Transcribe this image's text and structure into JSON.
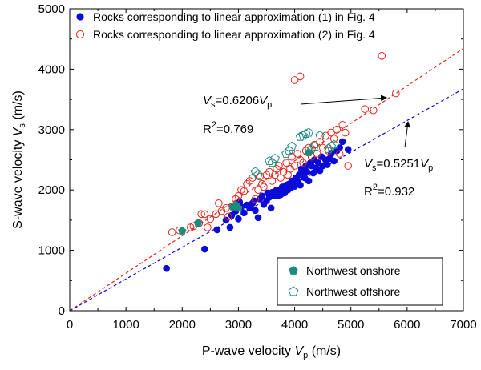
{
  "chart_data": {
    "type": "scatter",
    "xlabel": "P-wave velocity",
    "xlabel_symbol": "V",
    "xlabel_sub": "p",
    "xlabel_unit": " (m/s)",
    "ylabel": "S-wave velocity",
    "ylabel_symbol": "V",
    "ylabel_sub": "s",
    "ylabel_unit": " (m/s)",
    "xlim": [
      0,
      7000
    ],
    "ylim": [
      0,
      5000
    ],
    "xticks": [
      0,
      1000,
      2000,
      3000,
      4000,
      5000,
      6000,
      7000
    ],
    "yticks": [
      0,
      1000,
      2000,
      3000,
      4000,
      5000
    ],
    "grid": false,
    "legend_top": {
      "placement": "top-left",
      "entries": [
        {
          "label": "Rocks corresponding to linear approximation (1) in Fig. 4",
          "series": "linear-1"
        },
        {
          "label": "Rocks corresponding to linear approximation (2) in Fig. 4",
          "series": "linear-2"
        }
      ]
    },
    "legend_bottom": {
      "placement": "bottom-right",
      "entries": [
        {
          "label": "Northwest onshore",
          "series": "nw-onshore"
        },
        {
          "label": "Northwest offshore",
          "series": "nw-offshore"
        }
      ]
    },
    "series": [
      {
        "name": "Rocks corresponding to linear approximation (1) in Fig. 4",
        "id": "linear-1",
        "marker": "filled-circle",
        "color": "#0b0bd9",
        "points": [
          [
            1720,
            700
          ],
          [
            2400,
            1020
          ],
          [
            2620,
            1340
          ],
          [
            2780,
            1500
          ],
          [
            2850,
            1380
          ],
          [
            2880,
            1580
          ],
          [
            2950,
            1650
          ],
          [
            3000,
            1520
          ],
          [
            3020,
            1800
          ],
          [
            3050,
            1720
          ],
          [
            3100,
            1620
          ],
          [
            3150,
            1750
          ],
          [
            3200,
            1700
          ],
          [
            3250,
            1780
          ],
          [
            3280,
            1820
          ],
          [
            3300,
            1660
          ],
          [
            3350,
            1540
          ],
          [
            3380,
            1850
          ],
          [
            3420,
            1900
          ],
          [
            3450,
            1760
          ],
          [
            3500,
            1820
          ],
          [
            3520,
            1950
          ],
          [
            3550,
            1880
          ],
          [
            3580,
            1700
          ],
          [
            3600,
            1960
          ],
          [
            3620,
            1900
          ],
          [
            3680,
            2000
          ],
          [
            3700,
            1900
          ],
          [
            3720,
            1980
          ],
          [
            3750,
            1920
          ],
          [
            3780,
            2050
          ],
          [
            3800,
            2000
          ],
          [
            3820,
            1950
          ],
          [
            3850,
            2080
          ],
          [
            3880,
            2000
          ],
          [
            3900,
            2100
          ],
          [
            3920,
            2030
          ],
          [
            3950,
            2150
          ],
          [
            4000,
            2060
          ],
          [
            4020,
            2200
          ],
          [
            4050,
            2150
          ],
          [
            4080,
            2250
          ],
          [
            4100,
            2080
          ],
          [
            4120,
            2350
          ],
          [
            4150,
            2300
          ],
          [
            4180,
            2200
          ],
          [
            4200,
            2400
          ],
          [
            4220,
            2300
          ],
          [
            4250,
            2150
          ],
          [
            4280,
            2450
          ],
          [
            4300,
            2400
          ],
          [
            4330,
            2280
          ],
          [
            4350,
            2500
          ],
          [
            4380,
            2360
          ],
          [
            4420,
            2450
          ],
          [
            4450,
            2320
          ],
          [
            4480,
            2550
          ],
          [
            4500,
            2400
          ],
          [
            4550,
            2500
          ],
          [
            4580,
            2420
          ],
          [
            4620,
            2520
          ],
          [
            4650,
            2600
          ],
          [
            4700,
            2480
          ],
          [
            4750,
            2650
          ],
          [
            4800,
            2700
          ],
          [
            4850,
            2800
          ],
          [
            4950,
            2670
          ]
        ]
      },
      {
        "name": "Rocks corresponding to linear approximation (2) in Fig. 4",
        "id": "linear-2",
        "marker": "open-circle",
        "color": "#e3261c",
        "points": [
          [
            1820,
            1300
          ],
          [
            1950,
            1330
          ],
          [
            2150,
            1380
          ],
          [
            2200,
            1400
          ],
          [
            2300,
            1450
          ],
          [
            2340,
            1600
          ],
          [
            2400,
            1600
          ],
          [
            2450,
            1380
          ],
          [
            2500,
            1520
          ],
          [
            2600,
            1600
          ],
          [
            2650,
            1780
          ],
          [
            2700,
            1650
          ],
          [
            2780,
            1700
          ],
          [
            2820,
            1560
          ],
          [
            2950,
            1850
          ],
          [
            3000,
            1900
          ],
          [
            3050,
            2000
          ],
          [
            3100,
            1980
          ],
          [
            3150,
            2100
          ],
          [
            3200,
            2150
          ],
          [
            3250,
            2200
          ],
          [
            3300,
            1850
          ],
          [
            3350,
            2000
          ],
          [
            3380,
            2220
          ],
          [
            3420,
            2100
          ],
          [
            3450,
            2050
          ],
          [
            3500,
            2250
          ],
          [
            3550,
            2300
          ],
          [
            3600,
            2150
          ],
          [
            3650,
            2250
          ],
          [
            3680,
            2350
          ],
          [
            3720,
            2400
          ],
          [
            3750,
            2200
          ],
          [
            3800,
            2300
          ],
          [
            3850,
            2450
          ],
          [
            3880,
            2250
          ],
          [
            3920,
            2350
          ],
          [
            3950,
            2550
          ],
          [
            4000,
            2400
          ],
          [
            4050,
            2600
          ],
          [
            4100,
            2500
          ],
          [
            4150,
            2450
          ],
          [
            4200,
            2650
          ],
          [
            4250,
            2700
          ],
          [
            4300,
            2550
          ],
          [
            4350,
            2750
          ],
          [
            4400,
            2600
          ],
          [
            4450,
            2800
          ],
          [
            4500,
            2700
          ],
          [
            4550,
            2900
          ],
          [
            4600,
            2650
          ],
          [
            4650,
            2950
          ],
          [
            4700,
            2850
          ],
          [
            4750,
            3000
          ],
          [
            4850,
            3080
          ],
          [
            4900,
            2950
          ],
          [
            4950,
            2400
          ],
          [
            4800,
            2600
          ],
          [
            4000,
            3820
          ],
          [
            4100,
            3880
          ],
          [
            5250,
            3340
          ],
          [
            5400,
            3320
          ],
          [
            5550,
            4220
          ],
          [
            5800,
            3600
          ]
        ]
      },
      {
        "name": "Northwest onshore",
        "id": "nw-onshore",
        "marker": "filled-pentagon",
        "color": "#1e8a7e",
        "points": [
          [
            2000,
            1320
          ],
          [
            2280,
            1450
          ],
          [
            2900,
            1720
          ],
          [
            2950,
            1750
          ],
          [
            3000,
            1700
          ],
          [
            4250,
            2620
          ]
        ]
      },
      {
        "name": "Northwest offshore",
        "id": "nw-offshore",
        "marker": "open-pentagon",
        "color": "#1e8a7e",
        "points": [
          [
            3300,
            2300
          ],
          [
            3350,
            2250
          ],
          [
            3550,
            2480
          ],
          [
            3600,
            2450
          ],
          [
            3650,
            2520
          ],
          [
            3850,
            2600
          ],
          [
            3900,
            2650
          ],
          [
            3950,
            2720
          ],
          [
            4100,
            2880
          ],
          [
            4150,
            2900
          ],
          [
            4200,
            2930
          ],
          [
            4250,
            2950
          ],
          [
            4300,
            2680
          ],
          [
            4350,
            2720
          ],
          [
            4450,
            2900
          ],
          [
            4600,
            2680
          ],
          [
            4650,
            2720
          ],
          [
            4700,
            2750
          ]
        ]
      }
    ],
    "fit_lines": [
      {
        "name": "linear-2-fit",
        "color": "#e3261c",
        "slope": 0.6206,
        "x": [
          0,
          7000
        ]
      },
      {
        "name": "linear-1-fit",
        "color": "#0b0bd9",
        "slope": 0.5251,
        "x": [
          0,
          7000
        ]
      }
    ],
    "annotations": [
      {
        "id": "eq2",
        "lhs_symbol": "V",
        "lhs_sub": "s",
        "mid": "=0.6206",
        "rhs_symbol": "V",
        "rhs_sub": "p",
        "r2_label": "R",
        "r2_sup": "2",
        "r2_value": "=0.769"
      },
      {
        "id": "eq1",
        "lhs_symbol": "V",
        "lhs_sub": "s",
        "mid": "=0.5251",
        "rhs_symbol": "V",
        "rhs_sub": "p",
        "r2_label": "R",
        "r2_sup": "2",
        "r2_value": "=0.932"
      }
    ]
  }
}
